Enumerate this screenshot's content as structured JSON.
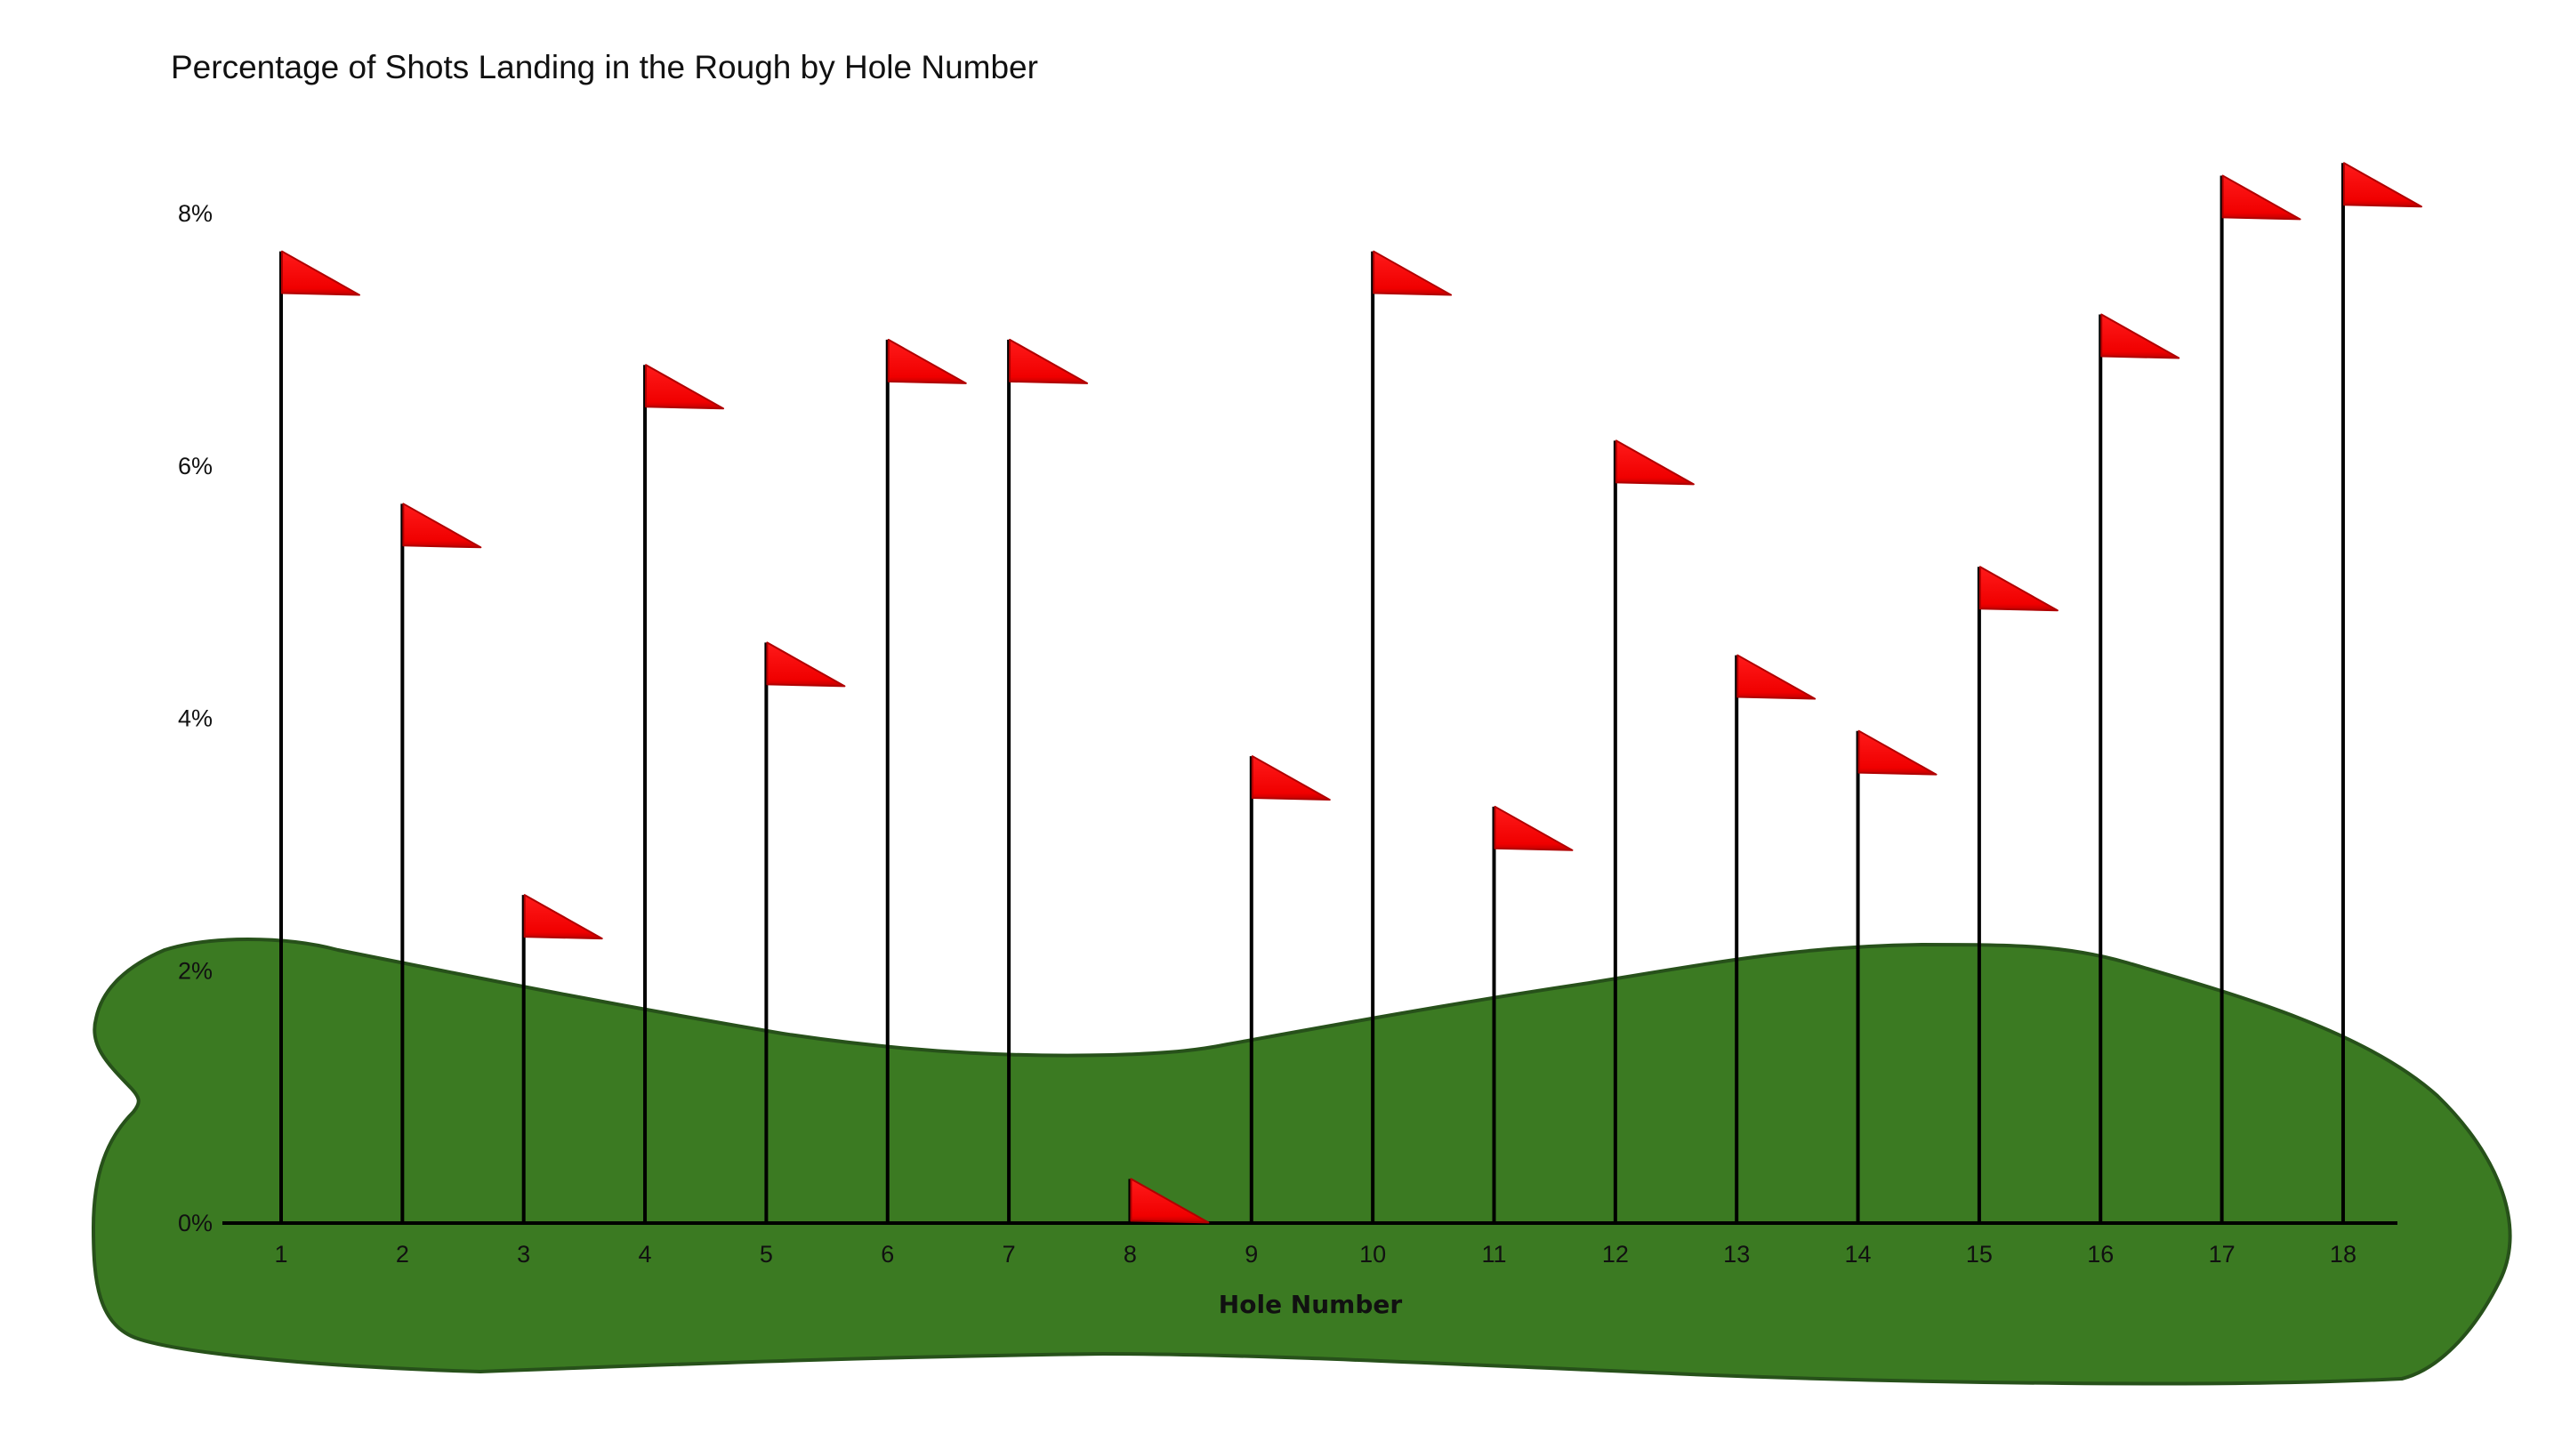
{
  "chart_data": {
    "type": "bar",
    "title": "Percentage of Shots Landing in the Rough by Hole Number",
    "xlabel": "Hole Number",
    "ylabel": "",
    "categories": [
      "1",
      "2",
      "3",
      "4",
      "5",
      "6",
      "7",
      "8",
      "9",
      "10",
      "11",
      "12",
      "13",
      "14",
      "15",
      "16",
      "17",
      "18"
    ],
    "values": [
      0.077,
      0.057,
      0.026,
      0.068,
      0.046,
      0.07,
      0.07,
      0.0035,
      0.037,
      0.077,
      0.033,
      0.062,
      0.045,
      0.039,
      0.052,
      0.072,
      0.083,
      0.084
    ],
    "ylim": [
      0,
      0.08
    ],
    "yticks": [
      {
        "value": 0,
        "label": "0%"
      },
      {
        "value": 0.02,
        "label": "2%"
      },
      {
        "value": 0.04,
        "label": "4%"
      },
      {
        "value": 0.06,
        "label": "6%"
      },
      {
        "value": 0.08,
        "label": "8%"
      }
    ],
    "grid": false,
    "legend": "none",
    "colors": {
      "flag": "#ff0000",
      "flag_outline": "#b00000",
      "pole": "#000000",
      "green_fill": "#3b7a22",
      "green_outline": "#27511a"
    },
    "mark": "flag-icon"
  }
}
